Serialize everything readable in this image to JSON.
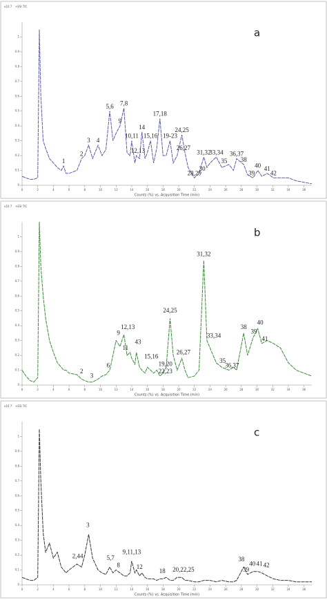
{
  "chart_data": [
    {
      "type": "line",
      "panel_label": "a",
      "y_unit": "x10 7",
      "trace_label": "+ESI TIC",
      "x_label": "Counts (%) vs. Acquisition Time (min)",
      "color": "#5a5aa8",
      "xlim": [
        0,
        37
      ],
      "xticks": [
        0,
        2,
        4,
        6,
        8,
        10,
        12,
        14,
        16,
        18,
        20,
        22,
        24,
        26,
        28,
        30,
        32,
        34,
        36
      ],
      "ylim": [
        0,
        1.1
      ],
      "yticks": [
        0,
        0.1,
        0.2,
        0.3,
        0.4,
        0.5,
        0.6,
        0.7,
        0.8,
        0.9,
        1
      ],
      "x": [
        0,
        0.5,
        1,
        1.5,
        2,
        2.2,
        2.4,
        2.7,
        3,
        3.5,
        4,
        4.5,
        5,
        5.3,
        5.6,
        6,
        7,
        7.6,
        8,
        8.5,
        9,
        9.7,
        10.2,
        10.7,
        11.2,
        11.6,
        12,
        12.5,
        13,
        13.4,
        13.8,
        14,
        14.4,
        14.6,
        15,
        15.3,
        15.7,
        16,
        16.4,
        16.8,
        17.2,
        17.6,
        18,
        18.4,
        18.9,
        19.3,
        19.8,
        20.4,
        20.8,
        21.2,
        22,
        22.6,
        23.2,
        23.6,
        24,
        24.8,
        25.5,
        26.4,
        27,
        27.4,
        28.3,
        28.8,
        29.5,
        30.1,
        30.6,
        31.3,
        32.1,
        33,
        34,
        35,
        36,
        37
      ],
      "values": [
        0.06,
        0.05,
        0.04,
        0.04,
        0.05,
        1.05,
        0.6,
        0.3,
        0.25,
        0.18,
        0.15,
        0.12,
        0.1,
        0.13,
        0.08,
        0.08,
        0.1,
        0.18,
        0.2,
        0.27,
        0.18,
        0.27,
        0.2,
        0.24,
        0.5,
        0.3,
        0.35,
        0.4,
        0.52,
        0.22,
        0.2,
        0.3,
        0.15,
        0.2,
        0.18,
        0.36,
        0.18,
        0.22,
        0.3,
        0.15,
        0.25,
        0.45,
        0.2,
        0.2,
        0.3,
        0.15,
        0.2,
        0.34,
        0.22,
        0.12,
        0.05,
        0.08,
        0.19,
        0.12,
        0.15,
        0.19,
        0.12,
        0.14,
        0.1,
        0.18,
        0.14,
        0.07,
        0.05,
        0.1,
        0.06,
        0.08,
        0.05,
        0.05,
        0.05,
        0.03,
        0.02,
        0.01
      ],
      "annotations": [
        {
          "text": "1",
          "x": 5.3,
          "y": 0.13
        },
        {
          "text": "2",
          "x": 7.6,
          "y": 0.18
        },
        {
          "text": "3",
          "x": 8.5,
          "y": 0.27
        },
        {
          "text": "4",
          "x": 9.7,
          "y": 0.27
        },
        {
          "text": "5,6",
          "x": 11.2,
          "y": 0.5
        },
        {
          "text": "7,8",
          "x": 13.0,
          "y": 0.52
        },
        {
          "text": "9",
          "x": 12.5,
          "y": 0.4
        },
        {
          "text": "10,11",
          "x": 14.0,
          "y": 0.3
        },
        {
          "text": "12,13",
          "x": 14.8,
          "y": 0.2
        },
        {
          "text": "14",
          "x": 15.3,
          "y": 0.36
        },
        {
          "text": "15,16",
          "x": 16.4,
          "y": 0.3
        },
        {
          "text": "17,18",
          "x": 17.6,
          "y": 0.45
        },
        {
          "text": "19-23",
          "x": 18.9,
          "y": 0.3
        },
        {
          "text": "24,25",
          "x": 20.4,
          "y": 0.34
        },
        {
          "text": "26,27",
          "x": 20.6,
          "y": 0.22
        },
        {
          "text": "28,29",
          "x": 22.0,
          "y": 0.05
        },
        {
          "text": "30",
          "x": 23.0,
          "y": 0.08
        },
        {
          "text": "31,32",
          "x": 23.2,
          "y": 0.19
        },
        {
          "text": "33,34",
          "x": 24.8,
          "y": 0.19
        },
        {
          "text": "35",
          "x": 25.8,
          "y": 0.13
        },
        {
          "text": "36,37",
          "x": 27.4,
          "y": 0.18
        },
        {
          "text": "38",
          "x": 28.3,
          "y": 0.14
        },
        {
          "text": "39",
          "x": 29.3,
          "y": 0.05
        },
        {
          "text": "40",
          "x": 30.1,
          "y": 0.1
        },
        {
          "text": "41",
          "x": 31.3,
          "y": 0.08
        },
        {
          "text": "42",
          "x": 32.1,
          "y": 0.05
        }
      ]
    },
    {
      "type": "line",
      "panel_label": "b",
      "y_unit": "x10 7",
      "trace_label": "+ESI TIC",
      "x_label": "Counts (%) vs. Acquisition Time (min)",
      "color": "#3a8a3a",
      "xlim": [
        0,
        37
      ],
      "xticks": [
        0,
        2,
        4,
        6,
        8,
        10,
        12,
        14,
        16,
        18,
        20,
        22,
        24,
        26,
        28,
        30,
        32,
        34,
        36
      ],
      "ylim": [
        0,
        1.1
      ],
      "yticks": [
        0,
        0.1,
        0.2,
        0.3,
        0.4,
        0.5,
        0.6,
        0.7,
        0.8,
        0.9,
        1
      ],
      "x": [
        0,
        0.5,
        1,
        1.5,
        2,
        2.2,
        2.4,
        2.7,
        3,
        3.5,
        4,
        4.5,
        5,
        5.3,
        5.6,
        6,
        7,
        7.6,
        8,
        8.5,
        9,
        9.7,
        10.2,
        10.7,
        11.2,
        11.6,
        12,
        12.5,
        13,
        13.4,
        13.8,
        14,
        14.4,
        14.6,
        15,
        15.3,
        15.7,
        16,
        16.4,
        16.8,
        17.2,
        17.6,
        18,
        18.4,
        18.9,
        19.3,
        19.8,
        20.4,
        20.8,
        21.2,
        22,
        22.6,
        23.2,
        23.6,
        24,
        24.8,
        25.5,
        26.4,
        27,
        27.4,
        28.3,
        28.8,
        29.5,
        30.1,
        30.6,
        31.3,
        32.1,
        33,
        34,
        35,
        36,
        37
      ],
      "values": [
        0.1,
        0.06,
        0.03,
        0.02,
        0.05,
        1.1,
        0.8,
        0.6,
        0.45,
        0.3,
        0.22,
        0.15,
        0.12,
        0.1,
        0.1,
        0.08,
        0.07,
        0.04,
        0.03,
        0.02,
        0.02,
        0.04,
        0.06,
        0.07,
        0.1,
        0.2,
        0.3,
        0.26,
        0.34,
        0.2,
        0.22,
        0.18,
        0.14,
        0.22,
        0.12,
        0.1,
        0.08,
        0.12,
        0.1,
        0.08,
        0.1,
        0.06,
        0.08,
        0.12,
        0.45,
        0.2,
        0.1,
        0.18,
        0.1,
        0.05,
        0.06,
        0.1,
        0.84,
        0.3,
        0.25,
        0.15,
        0.12,
        0.1,
        0.12,
        0.1,
        0.35,
        0.2,
        0.32,
        0.38,
        0.28,
        0.3,
        0.28,
        0.25,
        0.15,
        0.1,
        0.08,
        0.06
      ],
      "annotations": [
        {
          "text": "2",
          "x": 7.6,
          "y": 0.06
        },
        {
          "text": "3",
          "x": 8.9,
          "y": 0.03
        },
        {
          "text": "6",
          "x": 11.0,
          "y": 0.1
        },
        {
          "text": "9",
          "x": 12.3,
          "y": 0.32
        },
        {
          "text": "11",
          "x": 13.2,
          "y": 0.22
        },
        {
          "text": "12,13",
          "x": 13.5,
          "y": 0.36
        },
        {
          "text": "43",
          "x": 14.8,
          "y": 0.26
        },
        {
          "text": "15,16",
          "x": 16.5,
          "y": 0.16
        },
        {
          "text": "19,20",
          "x": 18.3,
          "y": 0.11
        },
        {
          "text": "22,23",
          "x": 18.3,
          "y": 0.06
        },
        {
          "text": "24,25",
          "x": 18.9,
          "y": 0.47
        },
        {
          "text": "26,27",
          "x": 20.6,
          "y": 0.19
        },
        {
          "text": "31,32",
          "x": 23.2,
          "y": 0.85
        },
        {
          "text": "33,34",
          "x": 24.5,
          "y": 0.3
        },
        {
          "text": "35",
          "x": 25.6,
          "y": 0.13
        },
        {
          "text": "36,37",
          "x": 26.8,
          "y": 0.1
        },
        {
          "text": "38",
          "x": 28.3,
          "y": 0.36
        },
        {
          "text": "39",
          "x": 29.6,
          "y": 0.33
        },
        {
          "text": "40",
          "x": 30.4,
          "y": 0.39
        },
        {
          "text": "41",
          "x": 31.0,
          "y": 0.28
        }
      ]
    },
    {
      "type": "line",
      "panel_label": "c",
      "y_unit": "x10 7",
      "trace_label": "+ESI TIC",
      "x_label": "Counts (%) vs. Acquisition Time (min)",
      "color": "#333333",
      "xlim": [
        0,
        37
      ],
      "xticks": [
        0,
        2,
        4,
        6,
        8,
        10,
        12,
        14,
        16,
        18,
        20,
        22,
        24,
        26,
        28,
        30,
        32,
        34,
        36
      ],
      "ylim": [
        0,
        1.1
      ],
      "yticks": [
        0,
        0.1,
        0.2,
        0.3,
        0.4,
        0.5,
        0.6,
        0.7,
        0.8,
        0.9,
        1
      ],
      "x": [
        0,
        0.5,
        1,
        1.5,
        2,
        2.2,
        2.4,
        2.7,
        3,
        3.5,
        4,
        4.5,
        5,
        5.3,
        5.6,
        6,
        7,
        7.6,
        8,
        8.5,
        9,
        9.7,
        10.2,
        10.7,
        11.2,
        11.6,
        12,
        12.5,
        13,
        13.4,
        13.8,
        14,
        14.4,
        14.6,
        15,
        15.3,
        15.7,
        16,
        16.4,
        16.8,
        17.2,
        17.6,
        18,
        18.4,
        18.9,
        19.3,
        19.8,
        20.4,
        20.8,
        21.2,
        22,
        22.6,
        23.2,
        23.6,
        24,
        24.8,
        25.5,
        26.4,
        27,
        27.4,
        28.3,
        28.8,
        29.5,
        30.1,
        30.6,
        31.3,
        32.1,
        33,
        34,
        35,
        36,
        37
      ],
      "values": [
        0.05,
        0.04,
        0.03,
        0.03,
        0.05,
        1.05,
        0.7,
        0.35,
        0.22,
        0.28,
        0.18,
        0.22,
        0.12,
        0.1,
        0.08,
        0.1,
        0.14,
        0.12,
        0.2,
        0.34,
        0.18,
        0.1,
        0.08,
        0.07,
        0.12,
        0.08,
        0.1,
        0.08,
        0.06,
        0.06,
        0.08,
        0.16,
        0.08,
        0.1,
        0.06,
        0.08,
        0.05,
        0.04,
        0.04,
        0.04,
        0.03,
        0.04,
        0.04,
        0.05,
        0.03,
        0.03,
        0.05,
        0.05,
        0.03,
        0.03,
        0.02,
        0.02,
        0.03,
        0.03,
        0.03,
        0.02,
        0.03,
        0.02,
        0.02,
        0.03,
        0.12,
        0.07,
        0.09,
        0.09,
        0.08,
        0.06,
        0.04,
        0.03,
        0.03,
        0.02,
        0.02,
        0.02
      ],
      "annotations": [
        {
          "text": "2,44",
          "x": 7.1,
          "y": 0.16
        },
        {
          "text": "3",
          "x": 8.4,
          "y": 0.37
        },
        {
          "text": "5,7",
          "x": 11.3,
          "y": 0.15
        },
        {
          "text": "8",
          "x": 12.3,
          "y": 0.1
        },
        {
          "text": "9,11,13",
          "x": 14.0,
          "y": 0.19
        },
        {
          "text": "12",
          "x": 15.0,
          "y": 0.09
        },
        {
          "text": "18",
          "x": 17.9,
          "y": 0.06
        },
        {
          "text": "20,22,25",
          "x": 20.6,
          "y": 0.07
        },
        {
          "text": "38",
          "x": 28.0,
          "y": 0.14
        },
        {
          "text": "39",
          "x": 28.6,
          "y": 0.07
        },
        {
          "text": "40",
          "x": 29.4,
          "y": 0.11
        },
        {
          "text": "41",
          "x": 30.3,
          "y": 0.11
        },
        {
          "text": "42",
          "x": 31.2,
          "y": 0.1
        }
      ]
    }
  ]
}
